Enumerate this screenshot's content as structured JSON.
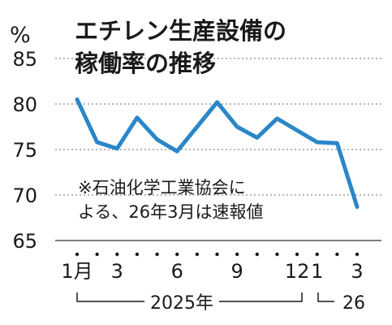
{
  "chart_data": {
    "type": "line",
    "title_lines": [
      "エチレン生産設備の",
      "稼働率の推移"
    ],
    "ylabel": "%",
    "ylim": [
      65,
      85
    ],
    "yticks": [
      65,
      70,
      75,
      80,
      85
    ],
    "grid": true,
    "xtick_labels": [
      "1月",
      "",
      "3",
      "",
      "",
      "6",
      "",
      "",
      "9",
      "",
      "",
      "12",
      "1",
      "",
      "3"
    ],
    "year_labels": [
      "2025年",
      "26"
    ],
    "note_lines": [
      "※石油化学工業協会に",
      "よる、26年3月は速報値"
    ],
    "series": [
      {
        "color": "#2a86c8",
        "x": [
          "2025-01",
          "2025-02",
          "2025-03",
          "2025-04",
          "2025-05",
          "2025-06",
          "2025-07",
          "2025-08",
          "2025-09",
          "2025-10",
          "2025-11",
          "2025-12",
          "2026-01",
          "2026-02",
          "2026-03"
        ],
        "values": [
          80.5,
          75.8,
          75.1,
          78.5,
          76.1,
          74.8,
          77.5,
          80.2,
          77.5,
          76.3,
          78.4,
          77.1,
          75.8,
          75.7,
          68.7
        ]
      }
    ]
  }
}
